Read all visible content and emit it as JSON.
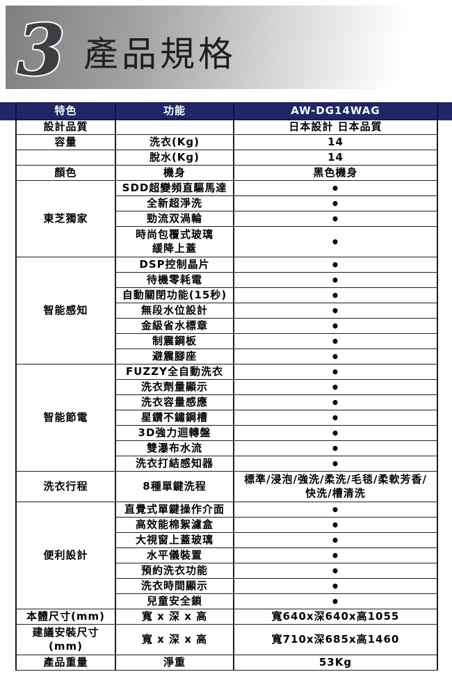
{
  "page": {
    "section_number": "3",
    "section_title": "產品規格"
  },
  "colors": {
    "header_navy": "#1f2769",
    "banner_gray": "#7f7f7f",
    "table_border": "#1d1d1d"
  },
  "table": {
    "headers": [
      "特色",
      "功能",
      "AW-DG14WAG"
    ],
    "bullet": "•",
    "sections": [
      {
        "label": "設計品質",
        "items": [
          {
            "func": "",
            "value": "日本設計 日本品質"
          }
        ]
      },
      {
        "label": "容量",
        "items": [
          {
            "func": "洗衣(Kg)",
            "value": "14"
          }
        ]
      },
      {
        "label": "",
        "items": [
          {
            "func": "脫水(Kg)",
            "value": "14"
          }
        ]
      },
      {
        "label": "顏色",
        "items": [
          {
            "func": "機身",
            "value": "黑色機身"
          }
        ]
      },
      {
        "label": "東芝獨家",
        "items": [
          {
            "func": "SDD超變頻直驅馬達",
            "value": "•"
          },
          {
            "func": "全新超淨洗",
            "value": "•"
          },
          {
            "func": "勁流双渦輪",
            "value": "•"
          },
          {
            "func": "時尚包覆式玻璃\n緩降上蓋",
            "value": "•",
            "tall": true
          }
        ]
      },
      {
        "label": "智能感知",
        "items": [
          {
            "func": "DSP控制晶片",
            "value": "•"
          },
          {
            "func": "待機零耗電",
            "value": "•"
          },
          {
            "func": "自動關閉功能(15秒)",
            "value": "•"
          },
          {
            "func": "無段水位設計",
            "value": "•"
          },
          {
            "func": "金級省水標章",
            "value": "•"
          },
          {
            "func": "制震鋼板",
            "value": "•"
          },
          {
            "func": "避震腳座",
            "value": "•"
          }
        ]
      },
      {
        "label": "智能節電",
        "items": [
          {
            "func": "FUZZY全自動洗衣",
            "value": "•"
          },
          {
            "func": "洗衣劑量顯示",
            "value": "•"
          },
          {
            "func": "洗衣容量感應",
            "value": "•"
          },
          {
            "func": "星鑽不鏽鋼槽",
            "value": "•"
          },
          {
            "func": "3D強力迴轉盤",
            "value": "•"
          },
          {
            "func": "雙瀑布水流",
            "value": "•"
          },
          {
            "func": "洗衣打結感知器",
            "value": "•"
          }
        ]
      },
      {
        "label": "洗衣行程",
        "items": [
          {
            "func": "8種單鍵洗程",
            "value": "標準/浸泡/強洗/柔洗/毛毯/柔軟芳香/\n快洗/槽清洗",
            "tall": true
          }
        ]
      },
      {
        "label": "便利設計",
        "items": [
          {
            "func": "直覺式單鍵操作介面",
            "value": "•"
          },
          {
            "func": "高效能棉絮濾盒",
            "value": "•"
          },
          {
            "func": "大視窗上蓋玻璃",
            "value": "•"
          },
          {
            "func": "水平儀裝置",
            "value": "•"
          },
          {
            "func": "預約洗衣功能",
            "value": "•"
          },
          {
            "func": "洗衣時間顯示",
            "value": "•"
          },
          {
            "func": "兒童安全鎖",
            "value": "•"
          }
        ]
      },
      {
        "label": "本體尺寸(mm)",
        "items": [
          {
            "func": "寬 x 深 x 高",
            "value": "寬640x深640x高1055"
          }
        ]
      },
      {
        "label": "建議安裝尺寸\n(mm)",
        "items": [
          {
            "func": "寬 x 深 x 高",
            "value": "寬710x深685x高1460",
            "tall": true
          }
        ]
      },
      {
        "label": "產品重量",
        "items": [
          {
            "func": "淨重",
            "value": "53Kg"
          }
        ]
      }
    ]
  }
}
